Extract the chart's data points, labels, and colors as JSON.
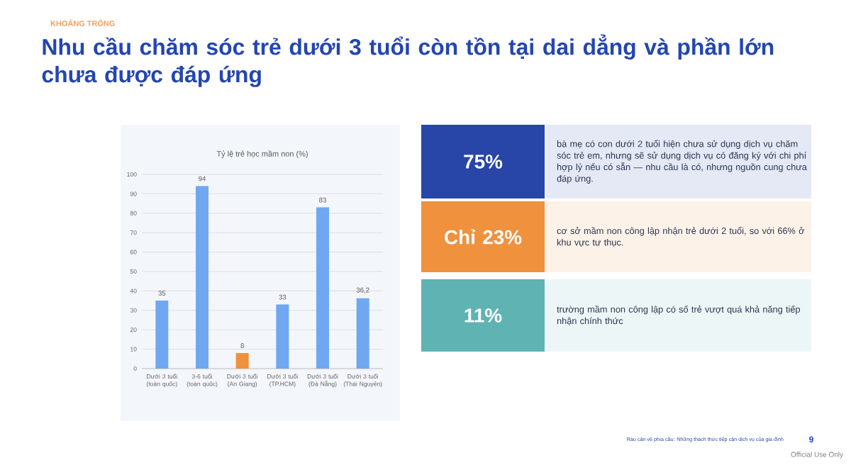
{
  "chart_data": [
    {
      "type": "other",
      "subtitle": "KHOẢNG TRỐNG",
      "title": "Nhu cầu chăm sóc trẻ dưới 3 tuổi còn tồn tại dai dẳng và phần lớn chưa được đáp ứng",
      "colors": [
        "#2746a8",
        "#f0913e",
        "#5fb3b3"
      ],
      "annotations": [
        "75%",
        "bà mẹ có con dưới 2 tuổi hiện chưa sử dụng dịch vụ chăm sóc trẻ em, nhưng sẽ sử dụng dịch vụ có đăng ký với chi phí hợp lý nếu có sẵn — nhu cầu là có, nhưng nguồn cung chưa đáp ứng.",
        "Chỉ 23%",
        "cơ sở mầm non công lập nhận trẻ dưới 2 tuổi, so với 66% ở khu vực tư thục.",
        "11%",
        "trường mầm non công lập có số trẻ vượt quá khả năng tiếp nhận chính thức",
        "Rào cản về phía cầu: Những thách thức tiếp cận dịch vụ của gia đình",
        "9",
        "Official Use Only"
      ]
    },
    {
      "type": "bar",
      "title": "Tỷ lệ trẻ học mầm non (%)",
      "categories": [
        "Dưới 3 tuổi (toàn quốc)",
        "3-6 tuổi (toàn quốc)",
        "Dưới 3 tuổi (An Giang)",
        "Dưới 3 tuổi (TP.HCM)",
        "Dưới 3 tuổi (Đà Nẵng)",
        "Dưới 3 tuổi (Thái Nguyên)"
      ],
      "values": [
        35,
        94,
        8,
        33,
        83,
        36.2
      ],
      "value_labels": [
        "35",
        "94",
        "8",
        "33",
        "83",
        "36,2"
      ],
      "colors": [
        "#6fa8f0",
        "#6fa8f0",
        "#f0913e",
        "#6fa8f0",
        "#6fa8f0",
        "#6fa8f0"
      ],
      "ylim": [
        0,
        100
      ],
      "yticks": [
        0,
        10,
        20,
        30,
        40,
        50,
        60,
        70,
        80,
        90,
        100
      ],
      "grid": "y"
    }
  ]
}
